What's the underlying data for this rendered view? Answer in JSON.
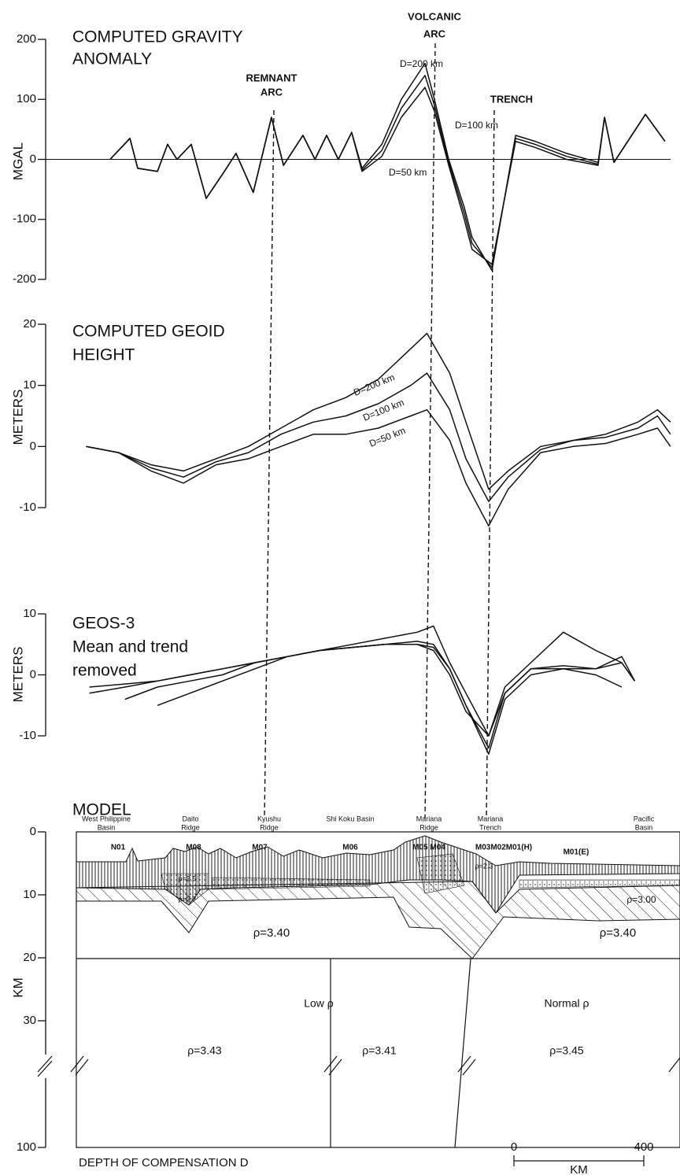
{
  "chart_data": [
    {
      "type": "line",
      "title_lines": [
        "COMPUTED GRAVITY",
        "ANOMALY"
      ],
      "y_label": "MGAL",
      "ylim": [
        -200,
        200
      ],
      "yticks": [
        -200,
        -100,
        0,
        100,
        200
      ],
      "zero_line": true,
      "annotations": [
        [
          "REMNANT",
          "ARC"
        ],
        [
          "VOLCANIC",
          "ARC"
        ],
        [
          "TRENCH"
        ]
      ],
      "x": [
        104,
        165,
        189,
        250,
        281,
        310,
        354,
        400,
        456,
        492,
        545,
        601,
        638,
        698,
        735,
        771,
        807,
        848,
        880,
        941,
        1001,
        1074,
        1103,
        1147,
        1195,
        1219,
        1280,
        1353,
        1413,
        1510,
        1607,
        1627,
        1656,
        1753,
        1813
      ],
      "series": [
        {
          "name": "D=200 km",
          "color": "#111111",
          "values": [
            0,
            35,
            -15,
            -20,
            25,
            0,
            25,
            -65,
            -20,
            10,
            -55,
            70,
            -10,
            40,
            0,
            40,
            0,
            45,
            -15,
            25,
            100,
            160,
            100,
            0,
            -80,
            -130,
            -185,
            40,
            30,
            10,
            -5,
            70,
            -5,
            75,
            30
          ]
        },
        {
          "name": "D=100 km",
          "color": "#111111",
          "values": [
            0,
            35,
            -15,
            -20,
            25,
            0,
            25,
            -65,
            -20,
            10,
            -55,
            70,
            -10,
            40,
            0,
            40,
            0,
            45,
            -18,
            15,
            85,
            140,
            90,
            -5,
            -90,
            -140,
            -180,
            35,
            25,
            5,
            -8,
            70,
            -5,
            75,
            30
          ]
        },
        {
          "name": "D=50 km",
          "color": "#111111",
          "values": [
            0,
            35,
            -15,
            -20,
            25,
            0,
            25,
            -65,
            -20,
            10,
            -55,
            70,
            -10,
            40,
            0,
            40,
            0,
            45,
            -20,
            5,
            70,
            120,
            80,
            -10,
            -100,
            -150,
            -175,
            30,
            20,
            0,
            -10,
            70,
            -5,
            75,
            30
          ]
        }
      ]
    },
    {
      "type": "line",
      "title_lines": [
        "COMPUTED GEOID",
        "HEIGHT"
      ],
      "y_label": "METERS",
      "ylim": [
        -10,
        20
      ],
      "yticks": [
        -10,
        0,
        10,
        20
      ],
      "x": [
        30,
        130,
        230,
        330,
        430,
        530,
        630,
        730,
        830,
        930,
        1030,
        1080,
        1150,
        1200,
        1270,
        1330,
        1430,
        1530,
        1630,
        1730,
        1790,
        1830
      ],
      "series": [
        {
          "name": "D=200 km",
          "color": "#111111",
          "values": [
            0,
            -1,
            -3,
            -4,
            -2,
            0,
            3,
            6,
            8,
            11,
            16,
            18.5,
            12,
            4,
            -7,
            -4,
            0,
            1,
            2,
            4,
            6,
            4
          ]
        },
        {
          "name": "D=100 km",
          "color": "#111111",
          "values": [
            0,
            -1,
            -3.5,
            -5,
            -2.5,
            -1,
            2,
            4,
            5,
            7,
            10,
            12,
            6,
            -2,
            -9,
            -5,
            -0.5,
            1,
            1.5,
            3,
            5,
            2
          ]
        },
        {
          "name": "D=50 km",
          "color": "#111111",
          "values": [
            0,
            -1,
            -4,
            -6,
            -3,
            -2,
            0,
            2,
            2,
            3,
            5,
            6,
            1,
            -6,
            -13,
            -7,
            -1,
            0,
            0.5,
            2,
            3,
            0
          ]
        }
      ]
    },
    {
      "type": "line",
      "title_lines": [
        "GEOS-3",
        "Mean and trend",
        "removed"
      ],
      "y_label": "METERS",
      "ylim": [
        -10,
        10
      ],
      "yticks": [
        -10,
        0,
        10
      ],
      "x": [
        40,
        150,
        250,
        350,
        450,
        550,
        650,
        750,
        850,
        950,
        1050,
        1100,
        1150,
        1200,
        1270,
        1320,
        1400,
        1500,
        1600,
        1680,
        1720
      ],
      "series": [
        {
          "color": "#111111",
          "values": [
            -2,
            -1.5,
            -1,
            0,
            1,
            2,
            3,
            4,
            5,
            6,
            7,
            8,
            2,
            -3,
            -10,
            -2,
            2,
            7,
            4,
            2,
            -1
          ]
        },
        {
          "color": "#111111",
          "values": [
            -3,
            -2,
            -1,
            0,
            1,
            2,
            3,
            4,
            4.5,
            5,
            5.5,
            5,
            1,
            -5,
            -12,
            -3,
            1,
            1,
            1,
            2,
            -1
          ]
        },
        {
          "color": "#111111",
          "values": [
            null,
            -4,
            -2,
            -1,
            0,
            2,
            3,
            4,
            4.5,
            5,
            5,
            4.5,
            1,
            -5,
            -13,
            -4,
            0,
            1,
            0,
            -2,
            null
          ]
        },
        {
          "color": "#111111",
          "values": [
            null,
            null,
            -5,
            -3,
            -1,
            1,
            3,
            4,
            4.5,
            5,
            5,
            4,
            0,
            -6,
            -10,
            -3,
            1,
            1.5,
            1,
            3,
            -1
          ]
        }
      ]
    },
    {
      "type": "diagram",
      "title": "MODEL",
      "y_label": "KM",
      "yticks": [
        0,
        10,
        20,
        30,
        100
      ],
      "regions": [
        [
          "West Philippine",
          "Basin"
        ],
        [
          "Daito",
          "Ridge"
        ],
        [
          "Kyushu",
          "Ridge"
        ],
        [
          "Shi Koku Basin"
        ],
        [
          "Mariana",
          "Ridge"
        ],
        [
          "Mariana",
          "Trench"
        ],
        [
          "Pacific",
          "Basin"
        ]
      ],
      "stations": [
        "N01",
        "M08",
        "M07",
        "M06",
        "M05 M04",
        "M03M02M01(H)",
        "M01(E)"
      ],
      "densities": [
        "ρ=2.5",
        "ρ=2.7",
        "ρ=2.3",
        "ρ=3.00",
        "ρ=3.40",
        "ρ=3.40",
        "Low ρ",
        "Normal ρ",
        "ρ=3.43",
        "ρ=3.41",
        "ρ=3.45"
      ],
      "footer": "DEPTH OF COMPENSATION D",
      "scalebar": {
        "ticks": [
          0,
          400
        ],
        "label": "KM"
      }
    }
  ]
}
